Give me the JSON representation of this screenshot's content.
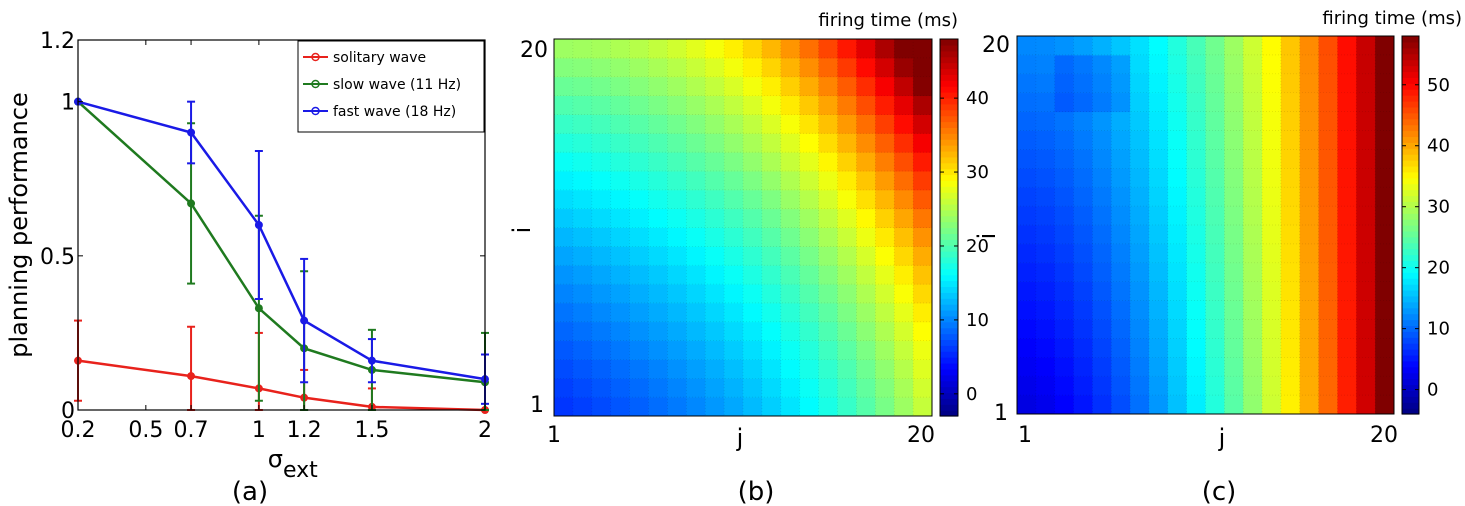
{
  "chart_data": [
    {
      "type": "line",
      "caption": "(a)",
      "xlabel": "σ",
      "xlabel_sub": "ext",
      "ylabel": "planning performance",
      "xlim": [
        0.2,
        2
      ],
      "ylim": [
        0,
        1.2
      ],
      "x_ticks": [
        0.2,
        0.5,
        0.7,
        1,
        1.2,
        1.5,
        2
      ],
      "x_tick_labels": [
        "0.2",
        "0.5",
        "0.7",
        "1",
        "1.2",
        "1.5",
        "2"
      ],
      "y_ticks": [
        0,
        0.5,
        1,
        1.2
      ],
      "y_tick_labels": [
        "0",
        "0.5",
        "1",
        "1.2"
      ],
      "legend_position": "top-right",
      "grid": false,
      "x": [
        0.2,
        0.7,
        1,
        1.2,
        1.5,
        2
      ],
      "series": [
        {
          "name": "solitary wave",
          "color": "#e8221c",
          "values": [
            0.16,
            0.11,
            0.07,
            0.04,
            0.01,
            0.0
          ],
          "errors": [
            0.13,
            0.16,
            0.18,
            0.09,
            0.06,
            0.0
          ]
        },
        {
          "name": "slow wave (11 Hz)",
          "color": "#1f7a1f",
          "values": [
            1.0,
            0.67,
            0.33,
            0.2,
            0.13,
            0.09
          ],
          "errors": [
            0.0,
            0.26,
            0.3,
            0.25,
            0.13,
            0.16
          ]
        },
        {
          "name": "fast wave (18 Hz)",
          "color": "#1a1ae6",
          "values": [
            1.0,
            0.9,
            0.6,
            0.29,
            0.16,
            0.1
          ],
          "errors": [
            0.0,
            0.1,
            0.24,
            0.2,
            0.07,
            0.08
          ]
        }
      ]
    },
    {
      "type": "heatmap",
      "caption": "(b)",
      "xlabel": "j",
      "ylabel": "i",
      "x_tick_labels": [
        "1",
        "20"
      ],
      "y_tick_labels": [
        "1",
        "20"
      ],
      "n": 20,
      "colorbar_title": "firing time (ms)",
      "clim": [
        -3,
        48
      ],
      "colorbar_ticks": [
        0,
        10,
        20,
        30,
        40
      ],
      "colorbar_tick_labels": [
        "0",
        "10",
        "20",
        "30",
        "40"
      ],
      "pattern": "b"
    },
    {
      "type": "heatmap",
      "caption": "(c)",
      "xlabel": "j",
      "ylabel": "i",
      "x_tick_labels": [
        "1",
        "20"
      ],
      "y_tick_labels": [
        "1",
        "20"
      ],
      "n": 20,
      "colorbar_title": "firing time (ms)",
      "clim": [
        -4,
        58
      ],
      "colorbar_ticks": [
        0,
        10,
        20,
        30,
        40,
        50
      ],
      "colorbar_tick_labels": [
        "0",
        "10",
        "20",
        "30",
        "40",
        "50"
      ],
      "pattern": "c"
    }
  ]
}
